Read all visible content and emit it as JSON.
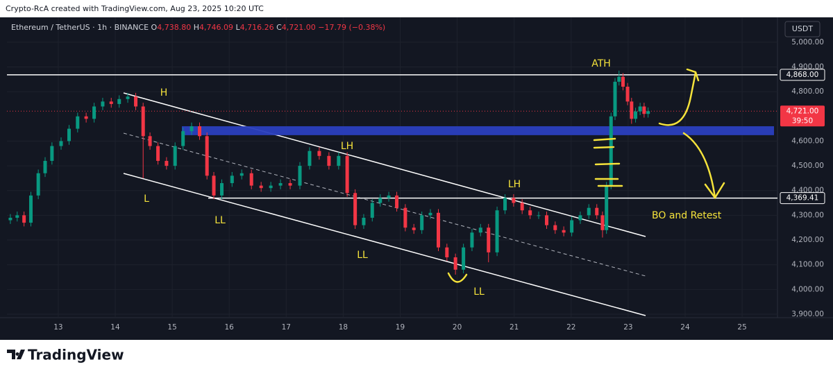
{
  "header": "Crypto-RcA created with TradingView.com, Aug 23, 2025 10:20 UTC",
  "brand": "TradingView",
  "chart_data": {
    "type": "candlestick",
    "legend": {
      "symbol": "Ethereum / TetherUS · 1h · BINANCE",
      "items": [
        {
          "key": "O",
          "value": "4,738.80"
        },
        {
          "key": "H",
          "value": "4,746.09"
        },
        {
          "key": "L",
          "value": "4,716.26"
        },
        {
          "key": "C",
          "value": "4,721.00"
        }
      ],
      "change": "−17.79 (−0.38%)"
    },
    "currency": "USDT",
    "up_color": "#089981",
    "down_color": "#f23645",
    "x": [
      12.16,
      12.28,
      12.4,
      12.52,
      12.65,
      12.77,
      12.89,
      13.05,
      13.19,
      13.34,
      13.49,
      13.63,
      13.78,
      13.93,
      14.07,
      14.22,
      14.36,
      14.49,
      14.61,
      14.75,
      14.9,
      15.05,
      15.19,
      15.34,
      15.48,
      15.61,
      15.73,
      15.87,
      16.05,
      16.22,
      16.39,
      16.56,
      16.73,
      16.9,
      17.07,
      17.24,
      17.41,
      17.58,
      17.75,
      17.92,
      18.07,
      18.21,
      18.36,
      18.51,
      18.65,
      18.8,
      18.94,
      19.09,
      19.24,
      19.38,
      19.53,
      19.67,
      19.82,
      19.97,
      20.11,
      20.26,
      20.41,
      20.55,
      20.7,
      20.84,
      20.99,
      21.14,
      21.28,
      21.43,
      21.57,
      21.72,
      21.87,
      22.01,
      22.16,
      22.31,
      22.45,
      22.55,
      22.62,
      22.7,
      22.77,
      22.84,
      22.91,
      22.99,
      23.06,
      23.13,
      23.21,
      23.28,
      23.35
    ],
    "open": [
      4280,
      4290,
      4300,
      4270,
      4380,
      4470,
      4520,
      4580,
      4600,
      4650,
      4700,
      4690,
      4740,
      4760,
      4750,
      4770,
      4780,
      4740,
      4620,
      4580,
      4520,
      4500,
      4580,
      4640,
      4660,
      4620,
      4460,
      4380,
      4430,
      4460,
      4470,
      4420,
      4410,
      4420,
      4430,
      4420,
      4500,
      4560,
      4540,
      4500,
      4540,
      4390,
      4260,
      4290,
      4350,
      4370,
      4380,
      4330,
      4250,
      4240,
      4300,
      4310,
      4170,
      4130,
      4080,
      4170,
      4230,
      4250,
      4150,
      4320,
      4370,
      4350,
      4320,
      4300,
      4300,
      4260,
      4240,
      4230,
      4280,
      4300,
      4330,
      4300,
      4240,
      4420,
      4700,
      4840,
      4860,
      4820,
      4760,
      4690,
      4720,
      4740,
      4710
    ],
    "high": [
      4305,
      4315,
      4315,
      4395,
      4485,
      4535,
      4595,
      4615,
      4665,
      4715,
      4715,
      4755,
      4775,
      4775,
      4785,
      4795,
      4795,
      4755,
      4635,
      4595,
      4535,
      4595,
      4655,
      4675,
      4675,
      4635,
      4475,
      4445,
      4475,
      4485,
      4485,
      4435,
      4435,
      4445,
      4445,
      4515,
      4575,
      4575,
      4555,
      4555,
      4555,
      4405,
      4305,
      4365,
      4385,
      4395,
      4395,
      4345,
      4265,
      4315,
      4325,
      4325,
      4185,
      4145,
      4185,
      4245,
      4265,
      4265,
      4335,
      4385,
      4385,
      4365,
      4335,
      4315,
      4315,
      4275,
      4255,
      4295,
      4315,
      4345,
      4345,
      4315,
      4435,
      4715,
      4855,
      4885,
      4875,
      4835,
      4775,
      4735,
      4755,
      4755,
      4736
    ],
    "low": [
      4265,
      4275,
      4255,
      4255,
      4365,
      4455,
      4505,
      4565,
      4585,
      4635,
      4675,
      4675,
      4725,
      4735,
      4735,
      4755,
      4725,
      4450,
      4565,
      4505,
      4485,
      4485,
      4565,
      4625,
      4605,
      4445,
      4365,
      4365,
      4415,
      4445,
      4405,
      4395,
      4395,
      4405,
      4405,
      4405,
      4485,
      4525,
      4485,
      4485,
      4375,
      4245,
      4245,
      4275,
      4335,
      4355,
      4315,
      4235,
      4225,
      4225,
      4285,
      4155,
      4115,
      4060,
      4065,
      4155,
      4215,
      4110,
      4135,
      4305,
      4335,
      4305,
      4285,
      4285,
      4245,
      4225,
      4215,
      4215,
      4265,
      4285,
      4285,
      4210,
      4225,
      4405,
      4685,
      4825,
      4805,
      4745,
      4670,
      4675,
      4705,
      4695,
      4695
    ],
    "close": [
      4290,
      4300,
      4270,
      4380,
      4470,
      4520,
      4580,
      4600,
      4650,
      4700,
      4690,
      4740,
      4760,
      4750,
      4770,
      4780,
      4740,
      4620,
      4580,
      4520,
      4500,
      4580,
      4640,
      4660,
      4620,
      4460,
      4380,
      4430,
      4460,
      4470,
      4420,
      4410,
      4420,
      4430,
      4420,
      4500,
      4560,
      4540,
      4500,
      4540,
      4390,
      4260,
      4290,
      4350,
      4370,
      4380,
      4330,
      4250,
      4240,
      4300,
      4310,
      4170,
      4130,
      4080,
      4170,
      4230,
      4250,
      4150,
      4320,
      4370,
      4350,
      4320,
      4300,
      4300,
      4260,
      4240,
      4230,
      4280,
      4300,
      4330,
      4300,
      4240,
      4420,
      4700,
      4840,
      4860,
      4820,
      4760,
      4690,
      4720,
      4740,
      4710,
      4721
    ],
    "xlim": [
      12.1,
      25.62
    ],
    "ylim": [
      3886,
      5092
    ],
    "xticks": [
      13,
      14,
      15,
      16,
      17,
      18,
      19,
      20,
      21,
      22,
      23,
      24,
      25
    ],
    "yticks": [
      {
        "value": 5000,
        "label": "5,000.00"
      },
      {
        "value": 4900,
        "label": "4,900.00"
      },
      {
        "value": 4800,
        "label": "4,800.00"
      },
      {
        "value": 4600,
        "label": "4,600.00"
      },
      {
        "value": 4500,
        "label": "4,500.00"
      },
      {
        "value": 4400,
        "label": "4,400.00"
      },
      {
        "value": 4300,
        "label": "4,300.00"
      },
      {
        "value": 4200,
        "label": "4,200.00"
      },
      {
        "value": 4100,
        "label": "4,100.00"
      },
      {
        "value": 4000,
        "label": "4,000.00"
      },
      {
        "value": 3900,
        "label": "3,900.00"
      }
    ],
    "grid": true,
    "levels": [
      {
        "value": 4868,
        "label": "4,868.00"
      },
      {
        "value": 4369.41,
        "label": "4,369.41"
      }
    ],
    "last_price": {
      "value": 4721,
      "label": "4,721.00",
      "countdown": "39:50"
    },
    "zone": [
      4624,
      4660
    ],
    "annotations": [
      "H",
      "L",
      "LL",
      "LH",
      "LL",
      "LL",
      "LH",
      "ATH",
      "BO and Retest"
    ]
  }
}
